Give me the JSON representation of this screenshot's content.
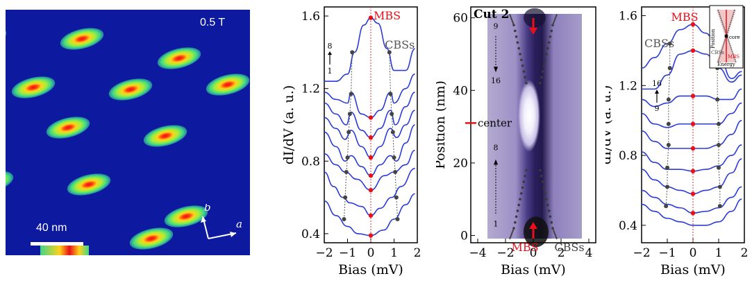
{
  "map": {
    "field_label": "0.5 T",
    "scale_label": "40 nm",
    "axis_a": "a",
    "axis_b": "b",
    "colors": {
      "background": "#0d1aa0",
      "core": "#e8101a"
    }
  },
  "chart_data": [
    {
      "type": "line",
      "xlabel": "Bias (mV)",
      "ylabel": "dI/dV (a. u.)",
      "xlim": [
        -2,
        2
      ],
      "ylim": [
        0.35,
        1.65
      ],
      "xticks": [
        "-2",
        "-1",
        "0",
        "1",
        "2"
      ],
      "yticks": [
        "0.4",
        "0.8",
        "1.2",
        "1.6"
      ],
      "annotations": {
        "mbs": "MBS",
        "cbs": "CBSs",
        "arrow_top": "8",
        "arrow_bottom": "1"
      },
      "series": [
        {
          "points": [
            [
              -2,
              0.58
            ],
            [
              -1.5,
              0.5
            ],
            [
              -1.0,
              0.44
            ],
            [
              -0.55,
              0.4
            ],
            [
              0,
              0.39
            ],
            [
              0.55,
              0.42
            ],
            [
              1.0,
              0.48
            ],
            [
              1.5,
              0.56
            ],
            [
              1.9,
              0.62
            ]
          ]
        },
        {
          "points": [
            [
              -2,
              0.74
            ],
            [
              -1.6,
              0.66
            ],
            [
              -1.2,
              0.6
            ],
            [
              -0.9,
              0.57
            ],
            [
              -0.4,
              0.55
            ],
            [
              0,
              0.5
            ],
            [
              0.4,
              0.54
            ],
            [
              0.9,
              0.6
            ],
            [
              1.3,
              0.66
            ],
            [
              1.9,
              0.76
            ]
          ]
        },
        {
          "points": [
            [
              -2,
              0.84
            ],
            [
              -1.5,
              0.78
            ],
            [
              -1.1,
              0.74
            ],
            [
              -0.6,
              0.7
            ],
            [
              0,
              0.64
            ],
            [
              0.6,
              0.72
            ],
            [
              1.0,
              0.74
            ],
            [
              1.5,
              0.78
            ],
            [
              1.9,
              0.86
            ]
          ]
        },
        {
          "points": [
            [
              -2,
              0.96
            ],
            [
              -1.5,
              0.88
            ],
            [
              -1.1,
              0.8
            ],
            [
              -0.85,
              0.83
            ],
            [
              -0.4,
              0.77
            ],
            [
              0,
              0.72
            ],
            [
              0.4,
              0.78
            ],
            [
              0.85,
              0.83
            ],
            [
              1.1,
              0.8
            ],
            [
              1.5,
              0.9
            ],
            [
              1.9,
              1.0
            ]
          ]
        },
        {
          "points": [
            [
              -2,
              1.04
            ],
            [
              -1.5,
              0.98
            ],
            [
              -1.1,
              0.92
            ],
            [
              -0.85,
              0.97
            ],
            [
              -0.4,
              0.88
            ],
            [
              0,
              0.82
            ],
            [
              0.4,
              0.88
            ],
            [
              0.85,
              0.98
            ],
            [
              1.1,
              0.93
            ],
            [
              1.5,
              1.0
            ],
            [
              1.9,
              1.08
            ]
          ]
        },
        {
          "points": [
            [
              -2,
              1.12
            ],
            [
              -1.5,
              1.06
            ],
            [
              -1.05,
              1.0
            ],
            [
              -0.85,
              1.07
            ],
            [
              -0.4,
              0.97
            ],
            [
              0,
              0.93
            ],
            [
              0.4,
              0.98
            ],
            [
              0.85,
              1.08
            ],
            [
              1.05,
              1.0
            ],
            [
              1.5,
              1.1
            ],
            [
              1.9,
              1.18
            ]
          ]
        },
        {
          "points": [
            [
              -2,
              1.18
            ],
            [
              -1.5,
              1.14
            ],
            [
              -1.0,
              1.12
            ],
            [
              -0.85,
              1.18
            ],
            [
              -0.4,
              1.06
            ],
            [
              0,
              1.04
            ],
            [
              0.4,
              1.08
            ],
            [
              0.85,
              1.18
            ],
            [
              1.0,
              1.12
            ],
            [
              1.5,
              1.2
            ],
            [
              1.9,
              1.28
            ]
          ]
        },
        {
          "points": [
            [
              -2,
              1.24
            ],
            [
              -1.5,
              1.24
            ],
            [
              -1.0,
              1.28
            ],
            [
              -0.7,
              1.4
            ],
            [
              -0.3,
              1.55
            ],
            [
              0,
              1.59
            ],
            [
              0.3,
              1.56
            ],
            [
              0.7,
              1.42
            ],
            [
              1.0,
              1.3
            ],
            [
              1.5,
              1.3
            ],
            [
              1.9,
              1.42
            ]
          ]
        }
      ],
      "mbs_x": 0,
      "mbs_y": [
        0.39,
        0.5,
        0.64,
        0.72,
        0.82,
        0.93,
        1.04,
        1.59
      ],
      "cbs": {
        "left_x": [
          -1.15,
          -1.1,
          -1.05,
          -1.0,
          -0.95,
          -0.9,
          -0.85,
          -0.8
        ],
        "right_x": [
          1.15,
          1.1,
          1.05,
          1.0,
          0.95,
          0.9,
          0.85,
          0.8
        ],
        "y": [
          0.48,
          0.6,
          0.74,
          0.82,
          0.96,
          1.06,
          1.17,
          1.4
        ]
      }
    },
    {
      "type": "heatmap",
      "title": "Cut 2",
      "xlabel": "Bias (mV)",
      "ylabel": "Position (nm)",
      "xlim": [
        -4.5,
        4.5
      ],
      "ylim": [
        -2,
        63
      ],
      "xticks": [
        "-4",
        "-2",
        "0",
        "2",
        "4"
      ],
      "yticks": [
        "0",
        "20",
        "40",
        "60"
      ],
      "annotations": {
        "center_label": "center",
        "center_y": 31,
        "mbs": "MBS",
        "cbs": "CBSs",
        "arrow_upper_top": "9",
        "arrow_upper_bottom": "16",
        "arrow_lower_top": "8",
        "arrow_lower_bottom": "1"
      }
    },
    {
      "type": "line",
      "xlabel": "Bias (mV)",
      "ylabel": "dI/dV (a. u.)",
      "xlim": [
        -2,
        2
      ],
      "ylim": [
        0.3,
        1.65
      ],
      "xticks": [
        "-2",
        "-1",
        "0",
        "1",
        "2"
      ],
      "yticks": [
        "0.4",
        "0.8",
        "1.2",
        "1.6"
      ],
      "annotations": {
        "mbs": "MBS",
        "cbs": "CBSs",
        "arrow_top": "16",
        "arrow_bottom": "9"
      },
      "inset": {
        "position": "Position",
        "energy": "Energy",
        "core": "core",
        "cbss": "CBSs",
        "mbs": "MBS"
      },
      "series": [
        {
          "points": [
            [
              -2,
              0.52
            ],
            [
              -1.5,
              0.48
            ],
            [
              -1.0,
              0.44
            ],
            [
              -0.5,
              0.42
            ],
            [
              0,
              0.4
            ],
            [
              0.5,
              0.4
            ],
            [
              1.0,
              0.42
            ],
            [
              1.5,
              0.48
            ],
            [
              1.9,
              0.55
            ]
          ]
        },
        {
          "points": [
            [
              -2,
              0.6
            ],
            [
              -1.5,
              0.56
            ],
            [
              -1.0,
              0.52
            ],
            [
              -0.5,
              0.5
            ],
            [
              0,
              0.47
            ],
            [
              0.5,
              0.48
            ],
            [
              1.0,
              0.5
            ],
            [
              1.5,
              0.56
            ],
            [
              1.9,
              0.62
            ]
          ]
        },
        {
          "points": [
            [
              -2,
              0.72
            ],
            [
              -1.5,
              0.66
            ],
            [
              -1.0,
              0.62
            ],
            [
              -0.5,
              0.6
            ],
            [
              0,
              0.58
            ],
            [
              0.5,
              0.6
            ],
            [
              1.0,
              0.62
            ],
            [
              1.5,
              0.7
            ],
            [
              1.9,
              0.78
            ]
          ]
        },
        {
          "points": [
            [
              -2,
              0.82
            ],
            [
              -1.5,
              0.76
            ],
            [
              -1.0,
              0.72
            ],
            [
              -0.5,
              0.72
            ],
            [
              0,
              0.71
            ],
            [
              0.5,
              0.72
            ],
            [
              1.0,
              0.74
            ],
            [
              1.5,
              0.8
            ],
            [
              1.9,
              0.86
            ]
          ]
        },
        {
          "points": [
            [
              -2,
              0.94
            ],
            [
              -1.5,
              0.88
            ],
            [
              -1.0,
              0.84
            ],
            [
              -0.5,
              0.84
            ],
            [
              0,
              0.84
            ],
            [
              0.5,
              0.84
            ],
            [
              1.0,
              0.86
            ],
            [
              1.5,
              0.92
            ],
            [
              1.9,
              1.0
            ]
          ]
        },
        {
          "points": [
            [
              -2,
              1.04
            ],
            [
              -1.5,
              0.98
            ],
            [
              -1.0,
              0.96
            ],
            [
              -0.5,
              0.98
            ],
            [
              0,
              0.98
            ],
            [
              0.5,
              0.98
            ],
            [
              1.0,
              0.98
            ],
            [
              1.5,
              1.04
            ],
            [
              1.9,
              1.1
            ]
          ]
        },
        {
          "points": [
            [
              -2,
              1.12
            ],
            [
              -1.5,
              1.08
            ],
            [
              -1.0,
              1.1
            ],
            [
              -0.5,
              1.14
            ],
            [
              0,
              1.14
            ],
            [
              0.5,
              1.14
            ],
            [
              1.0,
              1.12
            ],
            [
              1.5,
              1.12
            ],
            [
              1.9,
              1.18
            ]
          ]
        },
        {
          "points": [
            [
              -2,
              1.18
            ],
            [
              -1.5,
              1.18
            ],
            [
              -1.0,
              1.26
            ],
            [
              -0.5,
              1.38
            ],
            [
              0,
              1.4
            ],
            [
              0.5,
              1.38
            ],
            [
              1.0,
              1.3
            ],
            [
              1.5,
              1.22
            ],
            [
              1.9,
              1.26
            ]
          ]
        },
        {
          "points": [
            [
              -2,
              1.3
            ],
            [
              -1.5,
              1.36
            ],
            [
              -1.0,
              1.44
            ],
            [
              -0.5,
              1.52
            ],
            [
              0,
              1.55
            ],
            [
              0.5,
              1.5
            ],
            [
              1.0,
              1.38
            ],
            [
              1.5,
              1.24
            ],
            [
              1.9,
              1.28
            ]
          ]
        }
      ],
      "mbs_x": 0,
      "mbs_y": [
        0.47,
        0.58,
        0.71,
        0.84,
        0.98,
        1.14,
        1.4,
        1.55
      ],
      "cbs": {
        "left_x": [
          -1.05,
          -1.0,
          -1.0,
          -0.95,
          -0.95,
          -0.95,
          -0.9,
          -0.9
        ],
        "right_x": [
          1.05,
          1.05,
          1.0,
          1.0,
          1.0,
          0.95,
          0.95,
          0.9
        ],
        "y": [
          0.51,
          0.62,
          0.73,
          0.86,
          0.98,
          1.12,
          1.3,
          1.44
        ]
      }
    }
  ]
}
